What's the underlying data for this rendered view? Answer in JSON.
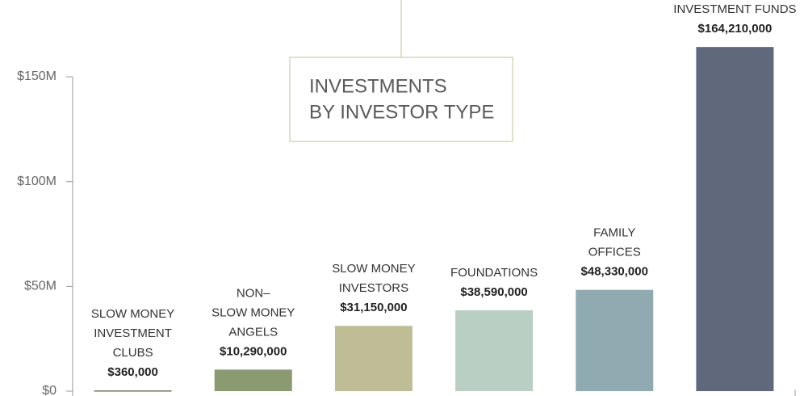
{
  "chart_data": {
    "type": "bar",
    "title": [
      "INVESTMENTS",
      "BY INVESTOR TYPE"
    ],
    "categories": [
      [
        "SLOW MONEY",
        "INVESTMENT",
        "CLUBS"
      ],
      [
        "NON–",
        "SLOW MONEY",
        "ANGELS"
      ],
      [
        "SLOW MONEY",
        "INVESTORS"
      ],
      [
        "FOUNDATIONS"
      ],
      [
        "FAMILY",
        "OFFICES"
      ],
      [
        "INVESTMENT FUNDS"
      ]
    ],
    "values": [
      360000,
      10290000,
      31150000,
      38590000,
      48330000,
      164210000
    ],
    "value_labels": [
      "$360,000",
      "$10,290,000",
      "$31,150,000",
      "$38,590,000",
      "$48,330,000",
      "$164,210,000"
    ],
    "colors": [
      "#6f7a55",
      "#8c9a72",
      "#bfbd96",
      "#b9cfc3",
      "#8faab1",
      "#5f697b"
    ],
    "ylim": [
      0,
      150000000
    ],
    "yticks": [
      {
        "value": 0,
        "label": "$0"
      },
      {
        "value": 50000000,
        "label": "$50M"
      },
      {
        "value": 100000000,
        "label": "$100M"
      },
      {
        "value": 150000000,
        "label": "$150M"
      }
    ]
  }
}
